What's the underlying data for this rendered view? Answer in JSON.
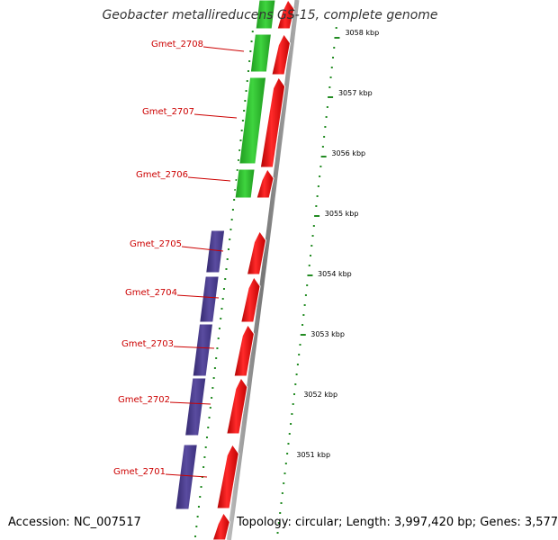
{
  "title": "Geobacter metallireducens GS-15, complete genome",
  "accession": "Accession: NC_007517",
  "summary": "Topology: circular; Length: 3,997,420 bp; Genes: 3,577",
  "colors": {
    "forward_strand": "#ff0000",
    "reverse_cds": "#4b3d8f",
    "gc_green": "#2ec42e",
    "ticks": "#228b22",
    "labels": "#cc0000",
    "backbone": "#9a9a9a"
  },
  "genes": [
    {
      "name": "Gmet_2708"
    },
    {
      "name": "Gmet_2707"
    },
    {
      "name": "Gmet_2706"
    },
    {
      "name": "Gmet_2705"
    },
    {
      "name": "Gmet_2704"
    },
    {
      "name": "Gmet_2703"
    },
    {
      "name": "Gmet_2702"
    },
    {
      "name": "Gmet_2701"
    }
  ],
  "scale_labels": [
    "3058 kbp",
    "3057 kbp",
    "3056 kbp",
    "3055 kbp",
    "3054 kbp",
    "3053 kbp",
    "3052 kbp",
    "3051 kbp"
  ]
}
